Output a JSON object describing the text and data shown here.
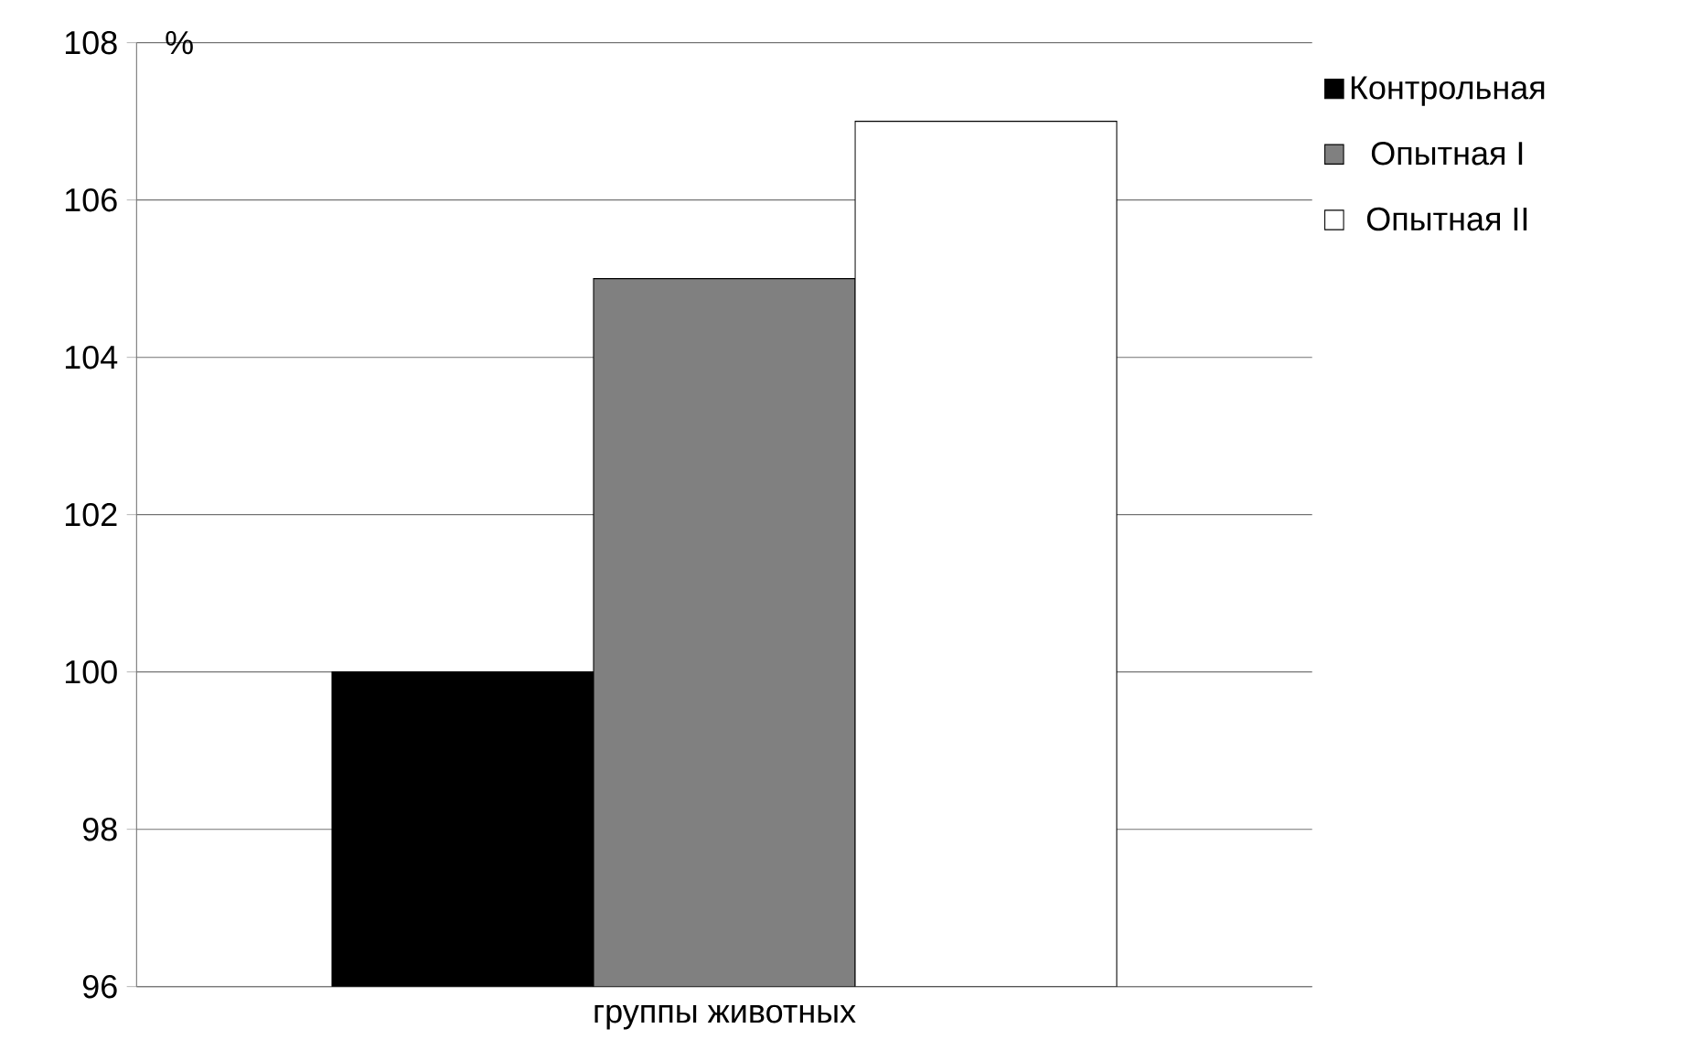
{
  "chart_data": {
    "type": "bar",
    "ylabel": "%",
    "categories": [
      "группы животных"
    ],
    "series": [
      {
        "name": "Контрольная",
        "color": "#000000",
        "values": [
          100
        ]
      },
      {
        "name": "Опытная I",
        "color": "#808080",
        "values": [
          105
        ]
      },
      {
        "name": "Опытная II",
        "color": "#ffffff",
        "values": [
          107
        ]
      }
    ],
    "ylim": [
      96,
      108
    ],
    "yticks": [
      96,
      98,
      100,
      102,
      104,
      106,
      108
    ],
    "grid": "y",
    "legend": "right"
  }
}
